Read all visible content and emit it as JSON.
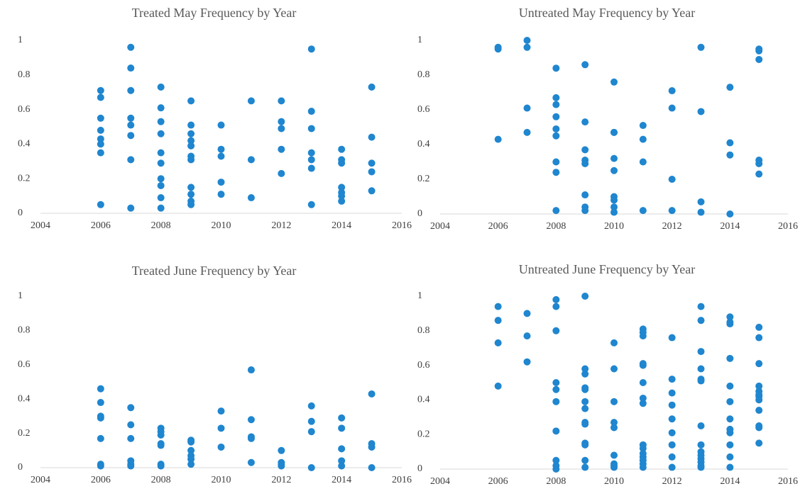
{
  "chart_data": [
    {
      "type": "scatter",
      "title": "Treated May Frequency by Year",
      "color": "#1f86cf",
      "xlim": [
        2004,
        2016
      ],
      "ylim": [
        0,
        1
      ],
      "xticks": [
        2004,
        2006,
        2008,
        2010,
        2012,
        2014,
        2016
      ],
      "yticks": [
        0,
        0.2,
        0.4,
        0.6,
        0.8,
        1
      ],
      "grid": false,
      "x": [
        2006,
        2006,
        2006,
        2006,
        2006,
        2006,
        2006,
        2006,
        2007,
        2007,
        2007,
        2007,
        2007,
        2007,
        2007,
        2007,
        2008,
        2008,
        2008,
        2008,
        2008,
        2008,
        2008,
        2008,
        2008,
        2008,
        2009,
        2009,
        2009,
        2009,
        2009,
        2009,
        2009,
        2009,
        2009,
        2009,
        2009,
        2010,
        2010,
        2010,
        2010,
        2010,
        2011,
        2011,
        2011,
        2012,
        2012,
        2012,
        2012,
        2012,
        2013,
        2013,
        2013,
        2013,
        2013,
        2013,
        2013,
        2014,
        2014,
        2014,
        2014,
        2014,
        2014,
        2014,
        2015,
        2015,
        2015,
        2015,
        2015
      ],
      "values": [
        0.71,
        0.67,
        0.55,
        0.48,
        0.43,
        0.4,
        0.35,
        0.05,
        0.96,
        0.84,
        0.71,
        0.55,
        0.51,
        0.45,
        0.31,
        0.03,
        0.73,
        0.61,
        0.53,
        0.46,
        0.35,
        0.29,
        0.2,
        0.16,
        0.09,
        0.03,
        0.65,
        0.51,
        0.46,
        0.42,
        0.39,
        0.33,
        0.31,
        0.15,
        0.11,
        0.07,
        0.05,
        0.51,
        0.37,
        0.33,
        0.18,
        0.11,
        0.65,
        0.31,
        0.09,
        0.65,
        0.53,
        0.49,
        0.37,
        0.23,
        0.95,
        0.59,
        0.49,
        0.35,
        0.31,
        0.26,
        0.05,
        0.37,
        0.31,
        0.29,
        0.15,
        0.12,
        0.1,
        0.07,
        0.73,
        0.44,
        0.29,
        0.24,
        0.13
      ]
    },
    {
      "type": "scatter",
      "title": "Untreated May Frequency by Year",
      "color": "#1f86cf",
      "xlim": [
        2004,
        2016
      ],
      "ylim": [
        0,
        1
      ],
      "xticks": [
        2004,
        2006,
        2008,
        2010,
        2012,
        2014,
        2016
      ],
      "yticks": [
        0,
        0.2,
        0.4,
        0.6,
        0.8,
        1
      ],
      "grid": false,
      "x": [
        2006,
        2006,
        2006,
        2007,
        2007,
        2007,
        2007,
        2008,
        2008,
        2008,
        2008,
        2008,
        2008,
        2008,
        2008,
        2008,
        2009,
        2009,
        2009,
        2009,
        2009,
        2009,
        2009,
        2009,
        2010,
        2010,
        2010,
        2010,
        2010,
        2010,
        2010,
        2010,
        2010,
        2011,
        2011,
        2011,
        2011,
        2012,
        2012,
        2012,
        2012,
        2013,
        2013,
        2013,
        2013,
        2014,
        2014,
        2014,
        2014,
        2015,
        2015,
        2015,
        2015,
        2015,
        2015
      ],
      "values": [
        0.96,
        0.95,
        0.43,
        1.0,
        0.96,
        0.61,
        0.47,
        0.84,
        0.67,
        0.63,
        0.56,
        0.49,
        0.45,
        0.3,
        0.24,
        0.02,
        0.86,
        0.53,
        0.37,
        0.31,
        0.29,
        0.11,
        0.04,
        0.02,
        0.76,
        0.47,
        0.47,
        0.32,
        0.25,
        0.1,
        0.08,
        0.04,
        0.01,
        0.51,
        0.43,
        0.3,
        0.02,
        0.71,
        0.61,
        0.2,
        0.02,
        0.96,
        0.59,
        0.07,
        0.01,
        0.73,
        0.41,
        0.34,
        0.0,
        0.95,
        0.94,
        0.89,
        0.31,
        0.29,
        0.23
      ]
    },
    {
      "type": "scatter",
      "title": "Treated June Frequency by Year",
      "color": "#1f86cf",
      "xlim": [
        2004,
        2016
      ],
      "ylim": [
        0,
        1
      ],
      "xticks": [
        2004,
        2006,
        2008,
        2010,
        2012,
        2014,
        2016
      ],
      "yticks": [
        0,
        0.2,
        0.4,
        0.6,
        0.8,
        1
      ],
      "grid": false,
      "x": [
        2006,
        2006,
        2006,
        2006,
        2006,
        2006,
        2006,
        2007,
        2007,
        2007,
        2007,
        2007,
        2007,
        2008,
        2008,
        2008,
        2008,
        2008,
        2008,
        2008,
        2009,
        2009,
        2009,
        2009,
        2009,
        2009,
        2010,
        2010,
        2010,
        2011,
        2011,
        2011,
        2011,
        2011,
        2012,
        2012,
        2012,
        2012,
        2013,
        2013,
        2013,
        2013,
        2014,
        2014,
        2014,
        2014,
        2014,
        2015,
        2015,
        2015,
        2015
      ],
      "values": [
        0.46,
        0.38,
        0.3,
        0.29,
        0.17,
        0.02,
        0.01,
        0.35,
        0.25,
        0.17,
        0.04,
        0.02,
        0.01,
        0.23,
        0.21,
        0.19,
        0.14,
        0.13,
        0.02,
        0.01,
        0.16,
        0.15,
        0.1,
        0.07,
        0.05,
        0.02,
        0.33,
        0.23,
        0.12,
        0.57,
        0.28,
        0.18,
        0.17,
        0.03,
        0.1,
        0.03,
        0.02,
        0.01,
        0.36,
        0.27,
        0.21,
        0.0,
        0.29,
        0.23,
        0.11,
        0.04,
        0.01,
        0.43,
        0.14,
        0.12,
        0.0
      ]
    },
    {
      "type": "scatter",
      "title": "Untreated June Frequency by Year",
      "color": "#1f86cf",
      "xlim": [
        2004,
        2016
      ],
      "ylim": [
        0,
        1
      ],
      "xticks": [
        2004,
        2006,
        2008,
        2010,
        2012,
        2014,
        2016
      ],
      "yticks": [
        0,
        0.2,
        0.4,
        0.6,
        0.8,
        1
      ],
      "grid": false,
      "x": [
        2006,
        2006,
        2006,
        2006,
        2007,
        2007,
        2007,
        2008,
        2008,
        2008,
        2008,
        2008,
        2008,
        2008,
        2008,
        2008,
        2008,
        2009,
        2009,
        2009,
        2009,
        2009,
        2009,
        2009,
        2009,
        2009,
        2009,
        2009,
        2009,
        2009,
        2010,
        2010,
        2010,
        2010,
        2010,
        2010,
        2010,
        2010,
        2010,
        2011,
        2011,
        2011,
        2011,
        2011,
        2011,
        2011,
        2011,
        2011,
        2011,
        2011,
        2011,
        2011,
        2011,
        2011,
        2012,
        2012,
        2012,
        2012,
        2012,
        2012,
        2012,
        2012,
        2012,
        2013,
        2013,
        2013,
        2013,
        2013,
        2013,
        2013,
        2013,
        2013,
        2013,
        2013,
        2013,
        2013,
        2013,
        2014,
        2014,
        2014,
        2014,
        2014,
        2014,
        2014,
        2014,
        2014,
        2014,
        2014,
        2014,
        2015,
        2015,
        2015,
        2015,
        2015,
        2015,
        2015,
        2015,
        2015,
        2015,
        2015,
        2015
      ],
      "values": [
        0.94,
        0.86,
        0.73,
        0.48,
        0.9,
        0.77,
        0.62,
        0.98,
        0.94,
        0.8,
        0.5,
        0.46,
        0.39,
        0.22,
        0.05,
        0.02,
        0.0,
        1.0,
        0.58,
        0.55,
        0.47,
        0.46,
        0.39,
        0.35,
        0.27,
        0.26,
        0.15,
        0.14,
        0.05,
        0.01,
        0.73,
        0.58,
        0.39,
        0.27,
        0.24,
        0.08,
        0.03,
        0.02,
        0.01,
        0.81,
        0.79,
        0.77,
        0.61,
        0.6,
        0.5,
        0.41,
        0.38,
        0.14,
        0.12,
        0.09,
        0.07,
        0.05,
        0.03,
        0.01,
        0.76,
        0.52,
        0.44,
        0.37,
        0.29,
        0.21,
        0.14,
        0.07,
        0.01,
        0.94,
        0.86,
        0.68,
        0.58,
        0.52,
        0.51,
        0.25,
        0.14,
        0.1,
        0.08,
        0.06,
        0.04,
        0.02,
        0.01,
        0.88,
        0.85,
        0.84,
        0.64,
        0.48,
        0.39,
        0.29,
        0.23,
        0.21,
        0.14,
        0.07,
        0.01,
        0.82,
        0.76,
        0.61,
        0.48,
        0.45,
        0.43,
        0.42,
        0.4,
        0.34,
        0.25,
        0.24,
        0.15
      ]
    }
  ]
}
